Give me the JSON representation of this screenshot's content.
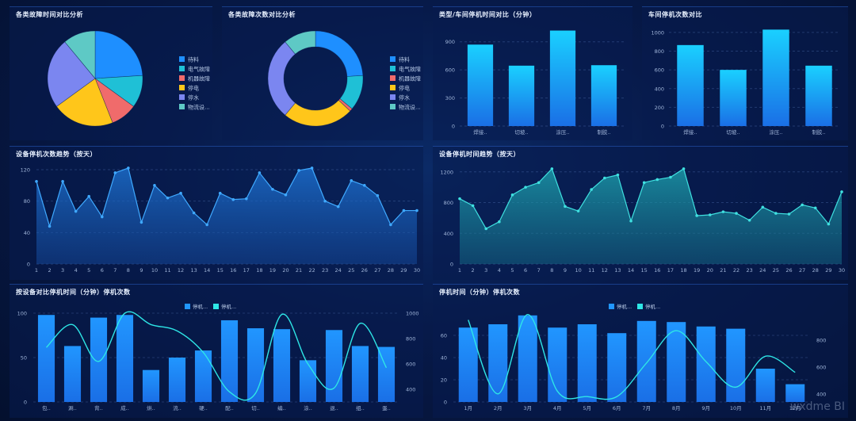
{
  "charts": {
    "pie1": {
      "title": "各类故障时间对比分析"
    },
    "pie2": {
      "title": "各类故障次数对比分析"
    },
    "bar1": {
      "title": "类型/车间停机时间对比（分钟）"
    },
    "bar2": {
      "title": "车间停机次数对比"
    },
    "area1": {
      "title": "设备停机次数趋势（按天）"
    },
    "area2": {
      "title": "设备停机时间趋势（按天）"
    },
    "combo1": {
      "title": "按设备对比停机时间（分钟）停机次数"
    },
    "combo2": {
      "title": "停机时间（分钟）停机次数"
    }
  },
  "watermark": "wxdme BI",
  "chart_data": [
    {
      "id": "pie1",
      "type": "pie",
      "title": "各类故障时间对比分析",
      "labels": [
        "待料",
        "电气故障",
        "机器故障",
        "停电",
        "停水",
        "物流设..."
      ],
      "values": [
        24,
        11,
        9,
        21,
        24,
        11
      ],
      "colors": [
        "#1e8fff",
        "#1fc0d6",
        "#f06b6b",
        "#ffc61a",
        "#7b86f0",
        "#5ec9c5"
      ]
    },
    {
      "id": "pie2",
      "type": "pie",
      "title": "各类故障次数对比分析",
      "donut": true,
      "labels": [
        "待料",
        "电气故障",
        "机器故障",
        "停电",
        "停水",
        "物流设..."
      ],
      "values": [
        24,
        12,
        1,
        24,
        28,
        11
      ],
      "colors": [
        "#1e8fff",
        "#1fc0d6",
        "#f06b6b",
        "#ffc61a",
        "#7b86f0",
        "#5ec9c5"
      ]
    },
    {
      "id": "bar1",
      "type": "bar",
      "title": "类型/车间停机时间对比（分钟）",
      "categories": [
        "焊接..",
        "切坡..",
        "涂压..",
        "制胶.."
      ],
      "values": [
        870,
        645,
        1020,
        650
      ],
      "ylim": [
        0,
        1050
      ],
      "yticks": [
        0,
        300,
        600,
        900
      ]
    },
    {
      "id": "bar2",
      "type": "bar",
      "title": "车间停机次数对比",
      "categories": [
        "焊接..",
        "切坡..",
        "涂压..",
        "制胶.."
      ],
      "values": [
        865,
        600,
        1030,
        645
      ],
      "ylim": [
        0,
        1050
      ],
      "yticks": [
        0,
        200,
        400,
        600,
        800,
        1000
      ]
    },
    {
      "id": "area1",
      "type": "area",
      "title": "设备停机次数趋势（按天）",
      "x": [
        1,
        2,
        3,
        4,
        5,
        6,
        7,
        8,
        9,
        10,
        11,
        12,
        13,
        14,
        15,
        16,
        17,
        18,
        19,
        20,
        21,
        22,
        23,
        24,
        25,
        26,
        27,
        28,
        29,
        30
      ],
      "values": [
        105,
        48,
        105,
        67,
        86,
        60,
        116,
        122,
        53,
        100,
        84,
        90,
        65,
        50,
        90,
        82,
        83,
        116,
        95,
        88,
        119,
        122,
        80,
        73,
        106,
        100,
        87,
        50,
        68,
        68
      ],
      "ylim": [
        0,
        125
      ],
      "yticks": [
        0,
        40,
        80,
        120
      ]
    },
    {
      "id": "area2",
      "type": "area",
      "title": "设备停机时间趋势（按天）",
      "x": [
        1,
        2,
        3,
        4,
        5,
        6,
        7,
        8,
        9,
        10,
        11,
        12,
        13,
        14,
        15,
        16,
        17,
        18,
        19,
        20,
        21,
        22,
        23,
        24,
        25,
        26,
        27,
        28,
        29,
        30
      ],
      "values": [
        850,
        760,
        460,
        550,
        900,
        1000,
        1060,
        1240,
        750,
        690,
        970,
        1120,
        1160,
        560,
        1060,
        1100,
        1130,
        1240,
        630,
        640,
        680,
        660,
        570,
        740,
        660,
        650,
        770,
        730,
        520,
        940
      ],
      "ylim": [
        0,
        1280
      ],
      "yticks": [
        0,
        400,
        800,
        1200
      ]
    },
    {
      "id": "combo1",
      "type": "bar",
      "title": "按设备对比停机时间（分钟）停机次数",
      "categories": [
        "包..",
        "涮..",
        "背..",
        "成..",
        "烘..",
        "流..",
        "硬..",
        "配..",
        "切..",
        "编..",
        "涂..",
        "退..",
        "组..",
        "蛋.."
      ],
      "series": [
        {
          "name": "停机...",
          "type": "bar",
          "axis": "left",
          "values": [
            98,
            63,
            95,
            98,
            36,
            50,
            58,
            92,
            83,
            82,
            47,
            81,
            63,
            62
          ]
        },
        {
          "name": "停机...",
          "type": "line",
          "axis": "right",
          "values": [
            730,
            910,
            620,
            1000,
            910,
            860,
            690,
            380,
            370,
            990,
            600,
            410,
            920,
            570
          ]
        }
      ],
      "yleft": [
        0,
        100
      ],
      "yleft_ticks": [
        0,
        50,
        100
      ],
      "yright": [
        300,
        1000
      ],
      "yright_ticks": [
        400,
        600,
        800,
        1000
      ]
    },
    {
      "id": "combo2",
      "type": "bar",
      "title": "停机时间（分钟）停机次数",
      "categories": [
        "1月",
        "2月",
        "3月",
        "4月",
        "5月",
        "6月",
        "7月",
        "8月",
        "9月",
        "10月",
        "11月",
        "12月"
      ],
      "series": [
        {
          "name": "停机...",
          "type": "bar",
          "axis": "left",
          "values": [
            67,
            70,
            78,
            67,
            70,
            62,
            73,
            72,
            68,
            66,
            30,
            16
          ]
        },
        {
          "name": "停机...",
          "type": "line",
          "axis": "right",
          "values": [
            950,
            400,
            990,
            420,
            380,
            380,
            630,
            870,
            640,
            450,
            680,
            560
          ]
        }
      ],
      "yleft": [
        0,
        80
      ],
      "yleft_ticks": [
        0,
        20,
        40,
        60
      ],
      "yright": [
        340,
        1000
      ],
      "yright_ticks": [
        400,
        600,
        800
      ]
    }
  ]
}
